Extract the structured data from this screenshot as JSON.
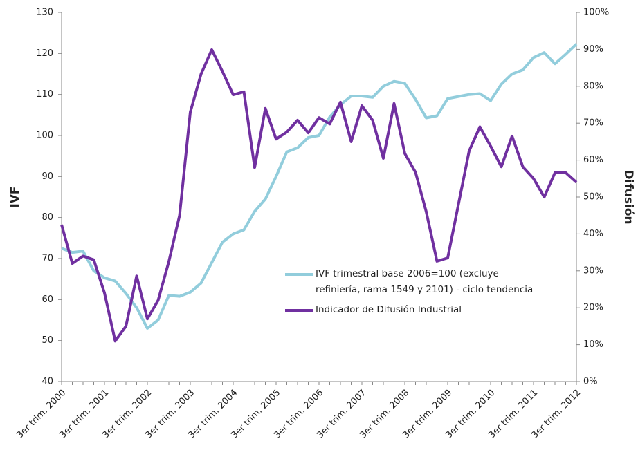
{
  "chart_data": {
    "type": "line",
    "categories": [
      "3er trim. 2000",
      null,
      null,
      null,
      "3er trim. 2001",
      null,
      null,
      null,
      "3er trim. 2002",
      null,
      null,
      null,
      "3er trim. 2003",
      null,
      null,
      null,
      "3er trim. 2004",
      null,
      null,
      null,
      "3er trim. 2005",
      null,
      null,
      null,
      "3er trim. 2006",
      null,
      null,
      null,
      "3er trim. 2007",
      null,
      null,
      null,
      "3er trim. 2008",
      null,
      null,
      null,
      "3er trim. 2009",
      null,
      null,
      null,
      "3er trim. 2010",
      null,
      null,
      null,
      "3er trim. 2011",
      null,
      null,
      null,
      "3er trim. 2012"
    ],
    "ylabel": "IVF",
    "y2label": "Difusión",
    "ylim": [
      40,
      130
    ],
    "yticks": [
      40,
      50,
      60,
      70,
      80,
      90,
      100,
      110,
      120,
      130
    ],
    "y2lim": [
      0,
      100
    ],
    "y2ticks": [
      {
        "value": 0,
        "label": "0%"
      },
      {
        "value": 10,
        "label": "10%"
      },
      {
        "value": 20,
        "label": "20%"
      },
      {
        "value": 30,
        "label": "30%"
      },
      {
        "value": 40,
        "label": "40%"
      },
      {
        "value": 50,
        "label": "50%"
      },
      {
        "value": 60,
        "label": "60%"
      },
      {
        "value": 70,
        "label": "70%"
      },
      {
        "value": 80,
        "label": "80%"
      },
      {
        "value": 90,
        "label": "90%"
      },
      {
        "value": 100,
        "label": "100%"
      }
    ],
    "series": [
      {
        "name": "IVF trimestral base 2006=100 (excluye refiniería, rama 1549 y 2101) - ciclo tendencia",
        "color": "#92cddc",
        "values": [
          72.5,
          71.5,
          71.8,
          67,
          65.3,
          64.5,
          61.5,
          58,
          53,
          55,
          61,
          60.8,
          61.8,
          64,
          69,
          74,
          76,
          77,
          81.5,
          84.5,
          90,
          96,
          97,
          99.5,
          100,
          104.5,
          107.5,
          109.6,
          109.6,
          109.3,
          112,
          113.2,
          112.7,
          108.8,
          104.3,
          104.8,
          109,
          109.5,
          110,
          110.2,
          108.5,
          112.5,
          115,
          116,
          119,
          120.2,
          117.5,
          119.8,
          122.3
        ]
      },
      {
        "name": "Indicador de Difusión Industrial",
        "color": "#7030a0",
        "axis": "y2",
        "values": [
          42.5,
          32,
          34,
          33,
          24,
          11,
          15,
          28.6,
          17,
          22,
          32.5,
          45,
          73,
          83.3,
          89.9,
          84,
          77.7,
          78.5,
          58,
          74,
          65.7,
          67.6,
          70.8,
          67.4,
          71.5,
          69.8,
          75.7,
          65,
          74.7,
          70.8,
          60.5,
          75.3,
          61.8,
          56.7,
          46,
          32.6,
          33.5,
          48,
          62.5,
          69,
          63.8,
          58.2,
          66.5,
          58.2,
          55,
          50,
          56.6,
          56.6,
          54
        ]
      }
    ]
  }
}
